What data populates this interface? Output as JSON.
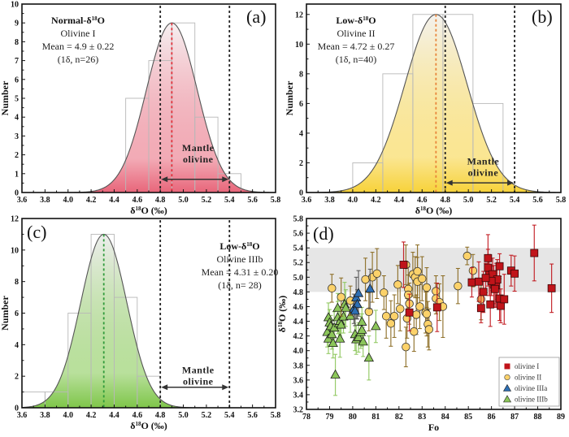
{
  "chart_data": [
    {
      "id": "a",
      "type": "bar",
      "panel_label": "(a)",
      "title_lines": [
        "Normal-δ18O",
        "Olivine I",
        "Mean = 4.9 ± 0.22",
        "(1δ, n=26)"
      ],
      "group_label": "Normal-δ",
      "group_sup": "18",
      "group_suffix": "O",
      "subtitle": "Olivine I",
      "mean_text": "Mean = 4.9 ± 0.22",
      "n_text": "(1δ, n=26)",
      "xlabel": "δ18O (‰)",
      "ylabel": "Number",
      "xlim": [
        3.6,
        5.8
      ],
      "ylim": [
        0,
        10
      ],
      "xticks": [
        3.6,
        3.8,
        4.0,
        4.2,
        4.4,
        4.6,
        4.8,
        5.0,
        5.2,
        5.4,
        5.6,
        5.8
      ],
      "yticks": [
        0,
        1,
        2,
        3,
        4,
        5,
        6,
        7,
        8,
        9,
        10
      ],
      "bins": [
        {
          "from": 4.5,
          "to": 4.7,
          "count": 5
        },
        {
          "from": 4.7,
          "to": 4.9,
          "count": 7
        },
        {
          "from": 4.9,
          "to": 5.1,
          "count": 9
        },
        {
          "from": 5.1,
          "to": 5.3,
          "count": 4
        },
        {
          "from": 5.3,
          "to": 5.5,
          "count": 1
        }
      ],
      "gaussian": {
        "mean": 4.9,
        "sd": 0.22,
        "peak": 9.0
      },
      "mean_line_color": "#e0303a",
      "fill_color_top": "#f6f1f2",
      "fill_color_bottom": "#e8667a",
      "mantle_range": [
        4.8,
        5.4
      ],
      "mantle_label": [
        "Mantle",
        "olivine"
      ],
      "mantle_label_y": 2.2,
      "mantle_arrow_y": 0.7,
      "annotation_position": "top-left"
    },
    {
      "id": "b",
      "type": "bar",
      "panel_label": "(b)",
      "group_label": "Low-δ",
      "group_sup": "18",
      "group_suffix": "O",
      "subtitle": "Olivine II",
      "mean_text": "Mean = 4.72 ± 0.27",
      "n_text": "(1δ, n=40)",
      "xlabel": "δ18O (‰)",
      "ylabel": "Number",
      "xlim": [
        3.6,
        5.8
      ],
      "ylim": [
        0,
        12.7
      ],
      "xticks": [
        3.6,
        3.8,
        4.0,
        4.2,
        4.4,
        4.6,
        4.8,
        5.0,
        5.2,
        5.4,
        5.6,
        5.8
      ],
      "yticks": [
        0,
        2,
        4,
        6,
        8,
        10,
        12
      ],
      "bins": [
        {
          "from": 4.0,
          "to": 4.26,
          "count": 2
        },
        {
          "from": 4.26,
          "to": 4.52,
          "count": 8
        },
        {
          "from": 4.52,
          "to": 4.78,
          "count": 12
        },
        {
          "from": 4.78,
          "to": 5.04,
          "count": 12
        },
        {
          "from": 5.04,
          "to": 5.3,
          "count": 6
        }
      ],
      "gaussian": {
        "mean": 4.72,
        "sd": 0.27,
        "peak": 12.0
      },
      "mean_line_color": "#e8853a",
      "fill_color_top": "#f4f2ef",
      "fill_color_bottom": "#f7d23a",
      "mantle_range": [
        4.8,
        5.4
      ],
      "mantle_label": [
        "Mantle",
        "olivine"
      ],
      "mantle_label_y": 1.9,
      "mantle_arrow_y": 0.65,
      "annotation_position": "top-left"
    },
    {
      "id": "c",
      "type": "bar",
      "panel_label": "(c)",
      "group_label": "Low-δ",
      "group_sup": "18",
      "group_suffix": "O",
      "subtitle": "Olivine IIIb",
      "mean_text": "Mean = 4.31 ± 0.20",
      "n_text": "(1δ, n= 28)",
      "xlabel": "δ18O (‰)",
      "ylabel": "Number",
      "xlim": [
        3.6,
        5.8
      ],
      "ylim": [
        0,
        12
      ],
      "xticks": [
        3.6,
        3.8,
        4.0,
        4.2,
        4.4,
        4.6,
        4.8,
        5.0,
        5.2,
        5.4,
        5.6,
        5.8
      ],
      "yticks": [
        0,
        2,
        4,
        6,
        8,
        10,
        12
      ],
      "bins": [
        {
          "from": 3.6,
          "to": 3.8,
          "count": 1
        },
        {
          "from": 3.8,
          "to": 4.0,
          "count": 1
        },
        {
          "from": 4.0,
          "to": 4.2,
          "count": 6
        },
        {
          "from": 4.2,
          "to": 4.4,
          "count": 11
        },
        {
          "from": 4.4,
          "to": 4.6,
          "count": 7
        },
        {
          "from": 4.6,
          "to": 4.8,
          "count": 2
        }
      ],
      "gaussian": {
        "mean": 4.31,
        "sd": 0.2,
        "peak": 11.0
      },
      "mean_line_color": "#2f9a3a",
      "fill_color_top": "#eeeeee",
      "fill_color_bottom": "#7fc64a",
      "mantle_range": [
        4.8,
        5.4
      ],
      "mantle_label": [
        "Mantle",
        "olivine"
      ],
      "mantle_label_y": 2.2,
      "mantle_arrow_y": 1.3,
      "annotation_position": "top-right"
    },
    {
      "id": "d",
      "type": "scatter",
      "panel_label": "(d)",
      "xlabel": "Fo",
      "ylabel": "δ18O (‰)",
      "xlim": [
        78,
        89
      ],
      "ylim": [
        3.2,
        5.8
      ],
      "xticks": [
        78,
        79,
        80,
        81,
        82,
        83,
        84,
        85,
        86,
        87,
        88,
        89
      ],
      "yticks": [
        3.2,
        3.4,
        3.6,
        3.8,
        4.0,
        4.2,
        4.4,
        4.6,
        4.8,
        5.0,
        5.2,
        5.4,
        5.6,
        5.8
      ],
      "mantle_band": [
        4.8,
        5.4
      ],
      "legend_position": "bottom-right",
      "series": [
        {
          "name": "olivine I",
          "marker": "square",
          "color": "#c0141a",
          "err_color": "#c0141a",
          "points": [
            [
              82.2,
              5.17,
              0.31
            ],
            [
              82.45,
              4.52,
              0.25
            ],
            [
              83.65,
              4.59,
              0.33
            ],
            [
              85.15,
              4.93,
              0.2
            ],
            [
              85.45,
              4.94,
              0.27
            ],
            [
              85.55,
              4.58,
              0.2
            ],
            [
              85.65,
              4.8,
              0.28
            ],
            [
              85.85,
              5.26,
              0.32
            ],
            [
              85.85,
              5.13,
              0.25
            ],
            [
              85.9,
              5.03,
              0.28
            ],
            [
              85.95,
              4.63,
              0.3
            ],
            [
              86.05,
              5.04,
              0.22
            ],
            [
              86.1,
              4.9,
              0.26
            ],
            [
              86.2,
              4.89,
              0.3
            ],
            [
              86.25,
              4.97,
              0.27
            ],
            [
              86.35,
              5.15,
              0.17
            ],
            [
              86.35,
              4.71,
              0.3
            ],
            [
              86.4,
              4.61,
              0.23
            ],
            [
              86.55,
              4.7,
              0.34
            ],
            [
              86.85,
              5.09,
              0.21
            ],
            [
              87.0,
              5.05,
              0.24
            ],
            [
              87.85,
              5.33,
              0.38
            ],
            [
              88.6,
              4.85,
              0.33
            ],
            [
              86.0,
              4.95,
              0.2
            ],
            [
              86.15,
              4.84,
              0.25
            ],
            [
              85.75,
              4.99,
              0.2
            ]
          ]
        },
        {
          "name": "olivine II",
          "marker": "circle",
          "color": "#fcd26a",
          "err_color": "#8a6a20",
          "points": [
            [
              79.1,
              4.85,
              0.19
            ],
            [
              79.5,
              4.73,
              0.26
            ],
            [
              79.9,
              4.68,
              0.2
            ],
            [
              80.55,
              4.97,
              0.29
            ],
            [
              80.7,
              4.53,
              0.26
            ],
            [
              80.85,
              5.0,
              0.34
            ],
            [
              81.05,
              5.05,
              0.34
            ],
            [
              81.35,
              4.79,
              0.23
            ],
            [
              81.45,
              4.47,
              0.3
            ],
            [
              81.65,
              4.37,
              0.31
            ],
            [
              81.8,
              4.47,
              0.29
            ],
            [
              81.95,
              4.9,
              0.26
            ],
            [
              82.05,
              4.57,
              0.3
            ],
            [
              82.3,
              5.17,
              0.27
            ],
            [
              82.3,
              4.05,
              0.27
            ],
            [
              82.35,
              4.44,
              0.27
            ],
            [
              82.4,
              4.84,
              0.3
            ],
            [
              82.4,
              4.76,
              0.27
            ],
            [
              82.45,
              4.64,
              0.28
            ],
            [
              82.6,
              5.04,
              0.3
            ],
            [
              82.65,
              4.26,
              0.27
            ],
            [
              82.7,
              5.0,
              0.28
            ],
            [
              82.75,
              4.49,
              0.27
            ],
            [
              82.8,
              5.08,
              0.36
            ],
            [
              82.8,
              4.94,
              0.33
            ],
            [
              82.9,
              4.6,
              0.3
            ],
            [
              83.0,
              4.98,
              0.3
            ],
            [
              83.15,
              4.52,
              0.28
            ],
            [
              83.2,
              4.86,
              0.27
            ],
            [
              83.2,
              4.5,
              0.3
            ],
            [
              83.25,
              4.36,
              0.31
            ],
            [
              83.3,
              4.29,
              0.28
            ],
            [
              83.6,
              4.81,
              0.21
            ],
            [
              83.6,
              4.71,
              0.21
            ],
            [
              83.75,
              4.66,
              0.25
            ],
            [
              83.9,
              4.6,
              0.42
            ],
            [
              84.55,
              4.88,
              0.24
            ],
            [
              84.95,
              5.29,
              0.12
            ],
            [
              85.2,
              5.09,
              0.22
            ],
            [
              85.55,
              4.7,
              0.28
            ]
          ]
        },
        {
          "name": "olivine IIIa",
          "marker": "triangle",
          "color": "#2e6fb4",
          "err_color": "#555555",
          "points": [
            [
              80.05,
              4.57,
              0.2
            ],
            [
              80.15,
              4.72,
              0.28
            ],
            [
              80.2,
              4.63,
              0.2
            ],
            [
              80.25,
              4.78,
              0.31
            ],
            [
              80.1,
              4.54,
              0.2
            ],
            [
              80.75,
              4.84,
              0.27
            ]
          ]
        },
        {
          "name": "olivine IIIb",
          "marker": "triangle",
          "color": "#8cc65a",
          "err_color": "#8cc65a",
          "points": [
            [
              78.9,
              4.25,
              0.2
            ],
            [
              78.95,
              4.45,
              0.2
            ],
            [
              78.95,
              4.16,
              0.2
            ],
            [
              79.0,
              4.38,
              0.18
            ],
            [
              79.05,
              4.33,
              0.15
            ],
            [
              79.1,
              4.22,
              0.2
            ],
            [
              79.15,
              4.1,
              0.2
            ],
            [
              79.2,
              4.31,
              0.22
            ],
            [
              79.25,
              3.67,
              0.28
            ],
            [
              79.35,
              4.58,
              0.2
            ],
            [
              79.35,
              4.45,
              0.22
            ],
            [
              79.4,
              4.37,
              0.2
            ],
            [
              79.45,
              4.16,
              0.25
            ],
            [
              79.45,
              4.4,
              0.2
            ],
            [
              79.5,
              4.35,
              0.2
            ],
            [
              79.6,
              4.46,
              0.22
            ],
            [
              79.65,
              4.63,
              0.3
            ],
            [
              79.7,
              4.58,
              0.25
            ],
            [
              79.9,
              4.47,
              0.22
            ],
            [
              80.1,
              4.22,
              0.22
            ],
            [
              80.15,
              4.15,
              0.2
            ],
            [
              80.25,
              4.18,
              0.2
            ],
            [
              80.35,
              4.25,
              0.22
            ],
            [
              80.4,
              4.39,
              0.2
            ],
            [
              80.4,
              4.28,
              0.22
            ],
            [
              80.45,
              4.12,
              0.2
            ],
            [
              80.7,
              3.9,
              0.3
            ],
            [
              81.0,
              4.33,
              0.22
            ]
          ]
        }
      ]
    }
  ],
  "legend": {
    "items": [
      {
        "label": "olivine I"
      },
      {
        "label": "olivine II"
      },
      {
        "label": "olivine IIIa"
      },
      {
        "label": "olivine IIIb"
      }
    ]
  }
}
